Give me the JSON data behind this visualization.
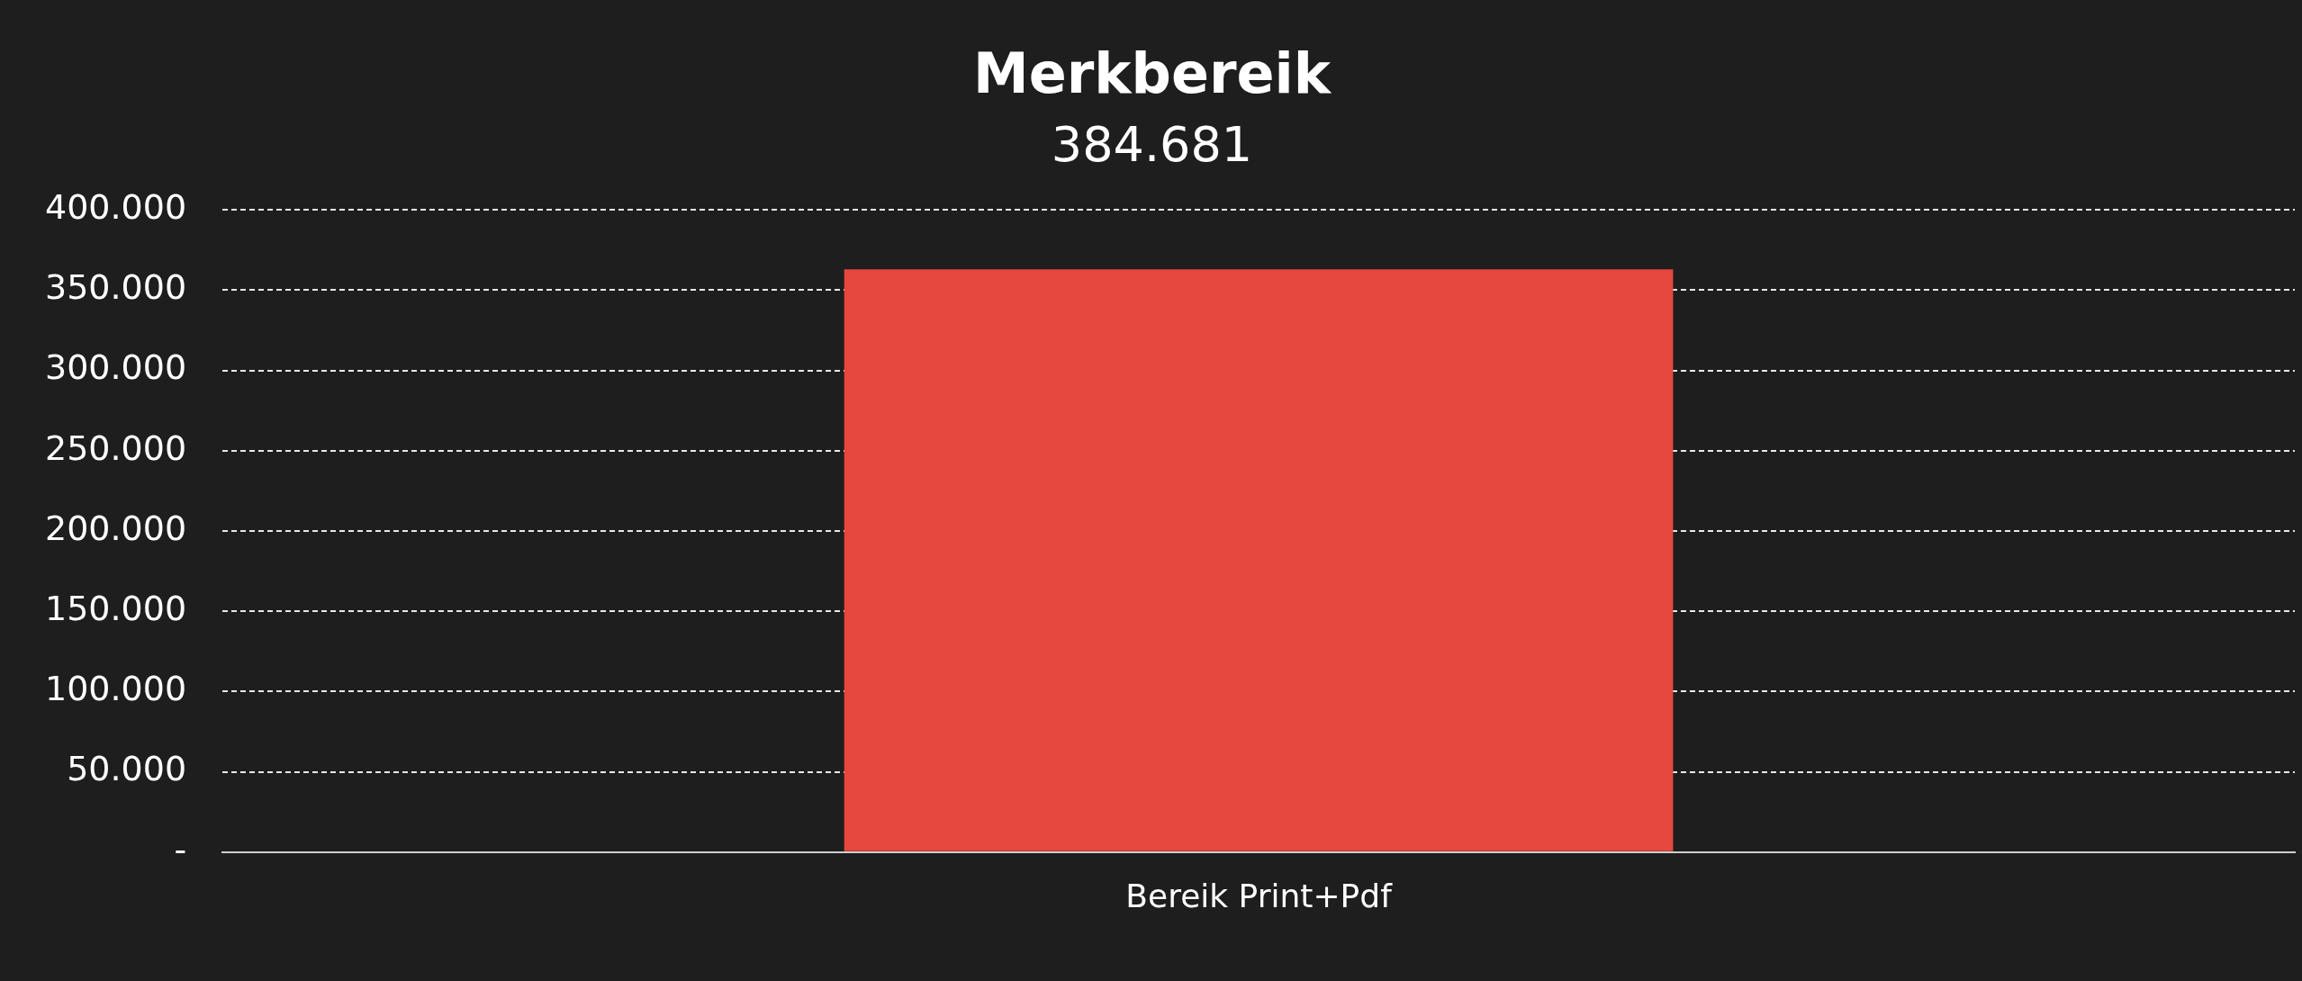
{
  "chart_data": {
    "type": "bar",
    "title": "Merkbereik",
    "subtitle": "384.681",
    "categories": [
      "Bereik Print+Pdf"
    ],
    "values": [
      363000
    ],
    "color": "#e6473e",
    "ylim": [
      0,
      400000
    ],
    "yticks": [
      {
        "value": 0,
        "label": "-"
      },
      {
        "value": 50000,
        "label": "50.000"
      },
      {
        "value": 100000,
        "label": "100.000"
      },
      {
        "value": 150000,
        "label": "150.000"
      },
      {
        "value": 200000,
        "label": "200.000"
      },
      {
        "value": 250000,
        "label": "250.000"
      },
      {
        "value": 300000,
        "label": "300.000"
      },
      {
        "value": 350000,
        "label": "350.000"
      },
      {
        "value": 400000,
        "label": "400.000"
      }
    ],
    "grid": "y",
    "legend": false
  }
}
